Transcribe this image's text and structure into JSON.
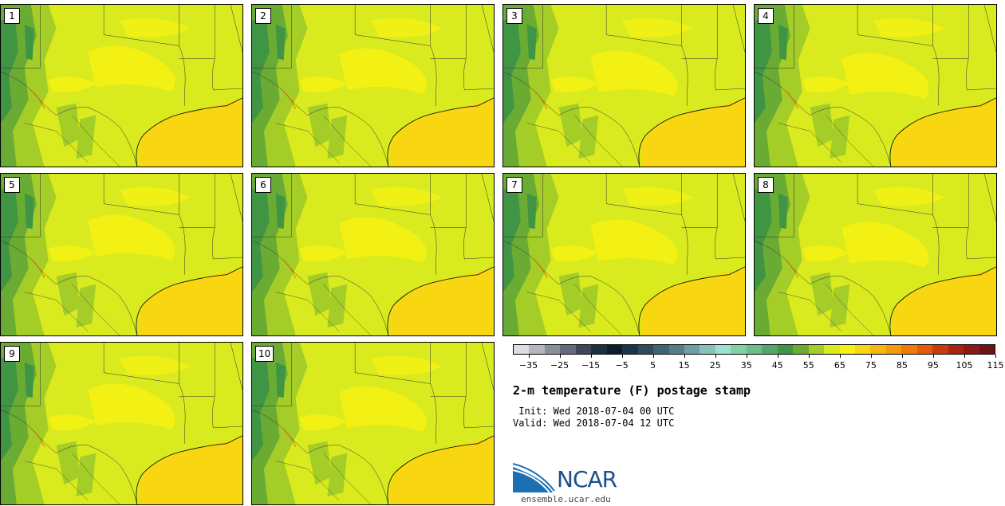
{
  "members": [
    {
      "label": "1"
    },
    {
      "label": "2"
    },
    {
      "label": "3"
    },
    {
      "label": "4"
    },
    {
      "label": "5"
    },
    {
      "label": "6"
    },
    {
      "label": "7"
    },
    {
      "label": "8"
    },
    {
      "label": "9"
    },
    {
      "label": "10"
    }
  ],
  "colorbar": {
    "colors": [
      "#dcdde3",
      "#b3b6c0",
      "#8a8f9c",
      "#626b7a",
      "#3c4759",
      "#1f2d40",
      "#0f1c2e",
      "#1d3347",
      "#2d4c5c",
      "#3f6572",
      "#547e88",
      "#6e9ea3",
      "#8ac0bc",
      "#9de0cf",
      "#7fd2a8",
      "#6abf8c",
      "#55a66a",
      "#3f9543",
      "#6aab34",
      "#a4cd28",
      "#d9ea1e",
      "#f7f212",
      "#f8d611",
      "#f6b60f",
      "#f49a0c",
      "#ef7c0a",
      "#e45a0a",
      "#cb3a0b",
      "#a82411",
      "#8c1a14",
      "#6d1412"
    ],
    "tick_labels": [
      "−35",
      "−25",
      "−15",
      "−5",
      "5",
      "15",
      "25",
      "35",
      "45",
      "55",
      "65",
      "75",
      "85",
      "95",
      "105",
      "115"
    ]
  },
  "title": "2-m temperature (F) postage stamp",
  "init_line": " Init: Wed 2018-07-04 00 UTC",
  "valid_line": "Valid: Wed 2018-07-04 12 UTC",
  "logo_text": "NCAR",
  "website": "ensemble.ucar.edu",
  "map_colors": {
    "land_main": "#d9ea1e",
    "land_cool": "#a4cd28",
    "land_cooler": "#6aab34",
    "land_cold": "#3f9543",
    "warm_patch": "#f7f212",
    "gulf": "#f8d611",
    "hot": "#e45a0a"
  }
}
